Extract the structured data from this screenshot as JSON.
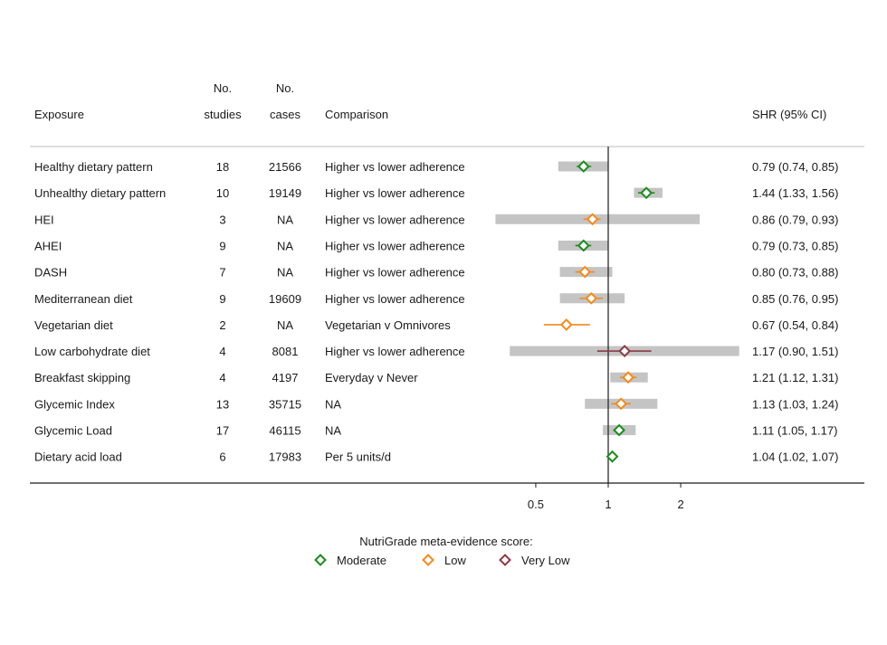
{
  "headers": {
    "exposure": "Exposure",
    "studies_top": "No.",
    "studies_bottom": "studies",
    "cases_top": "No.",
    "cases_bottom": "cases",
    "comparison": "Comparison",
    "shr": "SHR (95% CI)"
  },
  "legend": {
    "title": "NutriGrade meta-evidence score:",
    "items": [
      {
        "key": "moderate",
        "label": "Moderate",
        "color": "#1f8a1f"
      },
      {
        "key": "low",
        "label": "Low",
        "color": "#f28a1e"
      },
      {
        "key": "verylow",
        "label": "Very Low",
        "color": "#8b3a46"
      }
    ]
  },
  "colors": {
    "pi_bar": "#c4c4c4",
    "axis": "#1a1a1a",
    "divider": "#bdbdbd"
  },
  "chart_data": {
    "type": "forest",
    "x_scale": "log",
    "xlim": [
      0.6,
      3.5
    ],
    "xticks": [
      {
        "value": 0.5,
        "label": "0.5"
      },
      {
        "value": 1,
        "label": "1"
      },
      {
        "value": 2,
        "label": "2"
      }
    ],
    "reference_line": 1,
    "rows": [
      {
        "exposure": "Healthy dietary pattern",
        "studies": "18",
        "cases": "21566",
        "comparison": "Higher vs lower adherence",
        "shr": 0.79,
        "ci_low": 0.74,
        "ci_high": 0.85,
        "pi_low": 0.62,
        "pi_high": 1.0,
        "grade": "moderate",
        "shr_text": "0.79 (0.74, 0.85)"
      },
      {
        "exposure": "Unhealthy dietary pattern",
        "studies": "10",
        "cases": "19149",
        "comparison": "Higher vs lower adherence",
        "shr": 1.44,
        "ci_low": 1.33,
        "ci_high": 1.56,
        "pi_low": 1.28,
        "pi_high": 1.68,
        "grade": "moderate",
        "shr_text": "1.44 (1.33, 1.56)"
      },
      {
        "exposure": "HEI",
        "studies": "3",
        "cases": "NA",
        "comparison": "Higher vs lower adherence",
        "shr": 0.86,
        "ci_low": 0.79,
        "ci_high": 0.93,
        "pi_low": 0.34,
        "pi_high": 2.4,
        "grade": "low",
        "shr_text": "0.86 (0.79, 0.93)"
      },
      {
        "exposure": "AHEI",
        "studies": "9",
        "cases": "NA",
        "comparison": "Higher vs lower adherence",
        "shr": 0.79,
        "ci_low": 0.73,
        "ci_high": 0.85,
        "pi_low": 0.62,
        "pi_high": 1.0,
        "grade": "moderate",
        "shr_text": "0.79 (0.73, 0.85)"
      },
      {
        "exposure": "DASH",
        "studies": "7",
        "cases": "NA",
        "comparison": "Higher vs lower adherence",
        "shr": 0.8,
        "ci_low": 0.73,
        "ci_high": 0.88,
        "pi_low": 0.63,
        "pi_high": 1.04,
        "grade": "low",
        "shr_text": "0.80 (0.73, 0.88)"
      },
      {
        "exposure": "Mediterranean diet",
        "studies": "9",
        "cases": "19609",
        "comparison": "Higher vs lower adherence",
        "shr": 0.85,
        "ci_low": 0.76,
        "ci_high": 0.95,
        "pi_low": 0.63,
        "pi_high": 1.17,
        "grade": "low",
        "shr_text": "0.85 (0.76, 0.95)"
      },
      {
        "exposure": "Vegetarian diet",
        "studies": "2",
        "cases": "NA",
        "comparison": "Vegetarian v Omnivores",
        "shr": 0.67,
        "ci_low": 0.54,
        "ci_high": 0.84,
        "pi_low": null,
        "pi_high": null,
        "grade": "low",
        "shr_text": "0.67 (0.54, 0.84)"
      },
      {
        "exposure": "Low carbohydrate diet",
        "studies": "4",
        "cases": "8081",
        "comparison": "Higher vs lower adherence",
        "shr": 1.17,
        "ci_low": 0.9,
        "ci_high": 1.51,
        "pi_low": 0.39,
        "pi_high": 3.5,
        "grade": "verylow",
        "shr_text": "1.17 (0.90, 1.51)"
      },
      {
        "exposure": "Breakfast skipping",
        "studies": "4",
        "cases": "4197",
        "comparison": "Everyday v Never",
        "shr": 1.21,
        "ci_low": 1.12,
        "ci_high": 1.31,
        "pi_low": 1.02,
        "pi_high": 1.46,
        "grade": "low",
        "shr_text": "1.21 (1.12, 1.31)"
      },
      {
        "exposure": "Glycemic Index",
        "studies": "13",
        "cases": "35715",
        "comparison": "NA",
        "shr": 1.13,
        "ci_low": 1.03,
        "ci_high": 1.24,
        "pi_low": 0.8,
        "pi_high": 1.6,
        "grade": "low",
        "shr_text": "1.13 (1.03, 1.24)"
      },
      {
        "exposure": "Glycemic Load",
        "studies": "17",
        "cases": "46115",
        "comparison": "NA",
        "shr": 1.11,
        "ci_low": 1.05,
        "ci_high": 1.17,
        "pi_low": 0.95,
        "pi_high": 1.3,
        "grade": "moderate",
        "shr_text": "1.11 (1.05, 1.17)"
      },
      {
        "exposure": "Dietary acid load",
        "studies": "6",
        "cases": "17983",
        "comparison": "Per 5 units/d",
        "shr": 1.04,
        "ci_low": 1.02,
        "ci_high": 1.07,
        "pi_low": null,
        "pi_high": null,
        "grade": "moderate",
        "shr_text": "1.04 (1.02, 1.07)"
      }
    ]
  }
}
